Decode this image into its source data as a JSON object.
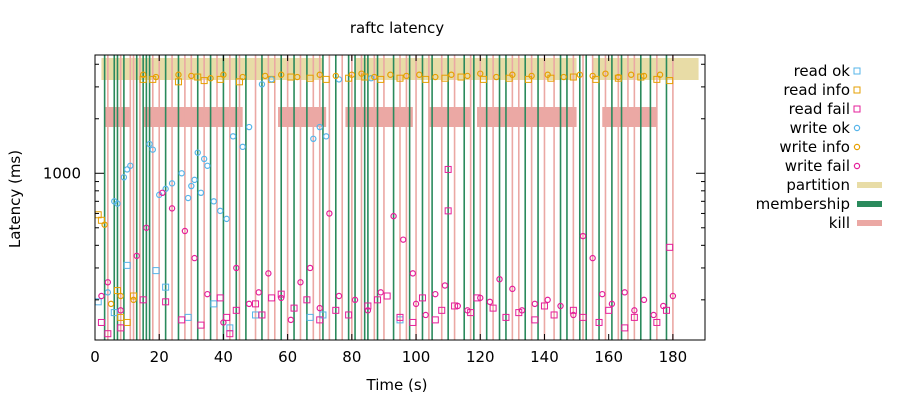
{
  "chart_data": {
    "type": "scatter",
    "title": "raftc latency",
    "xlabel": "Time (s)",
    "ylabel": "Latency (ms)",
    "xlim": [
      0,
      190
    ],
    "ylim_log": [
      120,
      4500
    ],
    "y_scale": "log",
    "xticks": [
      0,
      20,
      40,
      60,
      80,
      100,
      120,
      140,
      160,
      180
    ],
    "yticks_labeled": [
      1000
    ],
    "legend_position": "right",
    "grid": false,
    "colors": {
      "read ok": "#56b4e9",
      "read info": "#e69f00",
      "read fail": "#e51e9a",
      "write ok": "#56b4e9",
      "write info": "#e69f00",
      "write fail": "#e51e9a",
      "partition": "#e8dca6",
      "membership": "#2a8a5c",
      "kill": "#eba8a4"
    },
    "legend": [
      {
        "label": "read ok",
        "kind": "square",
        "color": "#56b4e9"
      },
      {
        "label": "read info",
        "kind": "square",
        "color": "#e69f00"
      },
      {
        "label": "read fail",
        "kind": "square",
        "color": "#e51e9a"
      },
      {
        "label": "write ok",
        "kind": "circle",
        "color": "#56b4e9"
      },
      {
        "label": "write info",
        "kind": "circle",
        "color": "#e69f00"
      },
      {
        "label": "write fail",
        "kind": "circle",
        "color": "#e51e9a"
      },
      {
        "label": "partition",
        "kind": "band",
        "color": "#e8dca6"
      },
      {
        "label": "membership",
        "kind": "band",
        "color": "#2a8a5c"
      },
      {
        "label": "kill",
        "kind": "band",
        "color": "#eba8a4"
      }
    ],
    "partition_intervals": [
      [
        2,
        24
      ],
      [
        24,
        54
      ],
      [
        54,
        71
      ],
      [
        81,
        103
      ],
      [
        103,
        150
      ],
      [
        155,
        188
      ]
    ],
    "kill_intervals": [
      [
        3,
        11
      ],
      [
        15,
        46
      ],
      [
        57,
        72
      ],
      [
        78,
        99
      ],
      [
        104,
        117
      ],
      [
        119,
        150
      ],
      [
        158,
        175
      ]
    ],
    "membership_events": [
      3,
      6,
      7,
      9,
      13,
      15,
      16,
      17,
      22,
      26,
      32,
      36,
      40,
      44,
      47,
      52,
      58,
      62,
      66,
      71,
      75,
      79,
      81,
      84,
      85,
      88,
      93,
      98,
      102,
      105,
      110,
      115,
      118,
      122,
      126,
      128,
      134,
      138,
      145,
      147,
      151,
      153,
      157,
      161,
      164,
      170,
      173,
      178
    ],
    "kill_events": [
      4,
      8,
      11,
      12,
      14,
      18,
      20,
      24,
      28,
      30,
      34,
      38,
      42,
      45,
      50,
      54,
      56,
      60,
      64,
      68,
      70,
      73,
      77,
      80,
      83,
      87,
      90,
      95,
      97,
      100,
      104,
      108,
      112,
      117,
      120,
      124,
      130,
      132,
      136,
      140,
      143,
      149,
      152,
      155,
      159,
      163,
      166,
      168,
      175,
      180
    ],
    "series": [
      {
        "name": "read ok",
        "points": [
          [
            1,
            195
          ],
          [
            6,
            170
          ],
          [
            10,
            310
          ],
          [
            19,
            290
          ],
          [
            22,
            235
          ],
          [
            29,
            160
          ],
          [
            37,
            190
          ],
          [
            42,
            140
          ],
          [
            50,
            165
          ],
          [
            67,
            160
          ],
          [
            71,
            165
          ],
          [
            95,
            155
          ]
        ]
      },
      {
        "name": "read info",
        "points": [
          [
            1,
            590
          ],
          [
            2,
            550
          ],
          [
            7,
            225
          ],
          [
            8,
            160
          ],
          [
            10,
            150
          ],
          [
            12,
            210
          ],
          [
            15,
            3300
          ],
          [
            18,
            3300
          ],
          [
            26,
            3200
          ],
          [
            32,
            3400
          ],
          [
            34,
            3250
          ],
          [
            39,
            3300
          ],
          [
            45,
            3200
          ],
          [
            55,
            3300
          ],
          [
            61,
            3400
          ],
          [
            67,
            3350
          ],
          [
            72,
            3300
          ],
          [
            79,
            3350
          ],
          [
            84,
            3400
          ],
          [
            89,
            3300
          ],
          [
            95,
            3350
          ],
          [
            103,
            3300
          ],
          [
            109,
            3350
          ],
          [
            114,
            3400
          ],
          [
            121,
            3300
          ],
          [
            129,
            3350
          ],
          [
            135,
            3300
          ],
          [
            142,
            3350
          ],
          [
            149,
            3400
          ],
          [
            156,
            3300
          ],
          [
            163,
            3350
          ],
          [
            170,
            3400
          ],
          [
            175,
            3300
          ],
          [
            179,
            3250
          ]
        ]
      },
      {
        "name": "read fail",
        "points": [
          [
            2,
            150
          ],
          [
            4,
            130
          ],
          [
            8,
            140
          ],
          [
            15,
            200
          ],
          [
            22,
            195
          ],
          [
            27,
            155
          ],
          [
            33,
            145
          ],
          [
            39,
            205
          ],
          [
            41,
            160
          ],
          [
            42,
            130
          ],
          [
            44,
            175
          ],
          [
            50,
            190
          ],
          [
            52,
            165
          ],
          [
            55,
            205
          ],
          [
            58,
            215
          ],
          [
            62,
            180
          ],
          [
            66,
            200
          ],
          [
            70,
            155
          ],
          [
            75,
            175
          ],
          [
            79,
            165
          ],
          [
            85,
            185
          ],
          [
            88,
            200
          ],
          [
            91,
            210
          ],
          [
            95,
            160
          ],
          [
            99,
            150
          ],
          [
            102,
            205
          ],
          [
            106,
            155
          ],
          [
            108,
            175
          ],
          [
            110,
            620
          ],
          [
            110,
            1050
          ],
          [
            112,
            185
          ],
          [
            117,
            170
          ],
          [
            119,
            205
          ],
          [
            124,
            180
          ],
          [
            128,
            160
          ],
          [
            132,
            170
          ],
          [
            137,
            155
          ],
          [
            140,
            185
          ],
          [
            143,
            165
          ],
          [
            149,
            175
          ],
          [
            152,
            160
          ],
          [
            157,
            150
          ],
          [
            160,
            175
          ],
          [
            165,
            140
          ],
          [
            168,
            160
          ],
          [
            175,
            150
          ],
          [
            178,
            175
          ],
          [
            179,
            390
          ]
        ]
      },
      {
        "name": "write ok",
        "points": [
          [
            4,
            220
          ],
          [
            6,
            700
          ],
          [
            7,
            680
          ],
          [
            9,
            950
          ],
          [
            10,
            1050
          ],
          [
            11,
            1100
          ],
          [
            17,
            1450
          ],
          [
            18,
            1350
          ],
          [
            20,
            760
          ],
          [
            22,
            820
          ],
          [
            24,
            880
          ],
          [
            27,
            1000
          ],
          [
            29,
            730
          ],
          [
            30,
            850
          ],
          [
            31,
            920
          ],
          [
            32,
            1300
          ],
          [
            33,
            780
          ],
          [
            34,
            1200
          ],
          [
            35,
            1100
          ],
          [
            37,
            700
          ],
          [
            39,
            620
          ],
          [
            41,
            560
          ],
          [
            43,
            1600
          ],
          [
            46,
            1400
          ],
          [
            48,
            1800
          ],
          [
            52,
            3100
          ],
          [
            55,
            3300
          ],
          [
            68,
            1550
          ],
          [
            70,
            1800
          ],
          [
            72,
            1600
          ],
          [
            76,
            3300
          ],
          [
            86,
            3350
          ]
        ]
      },
      {
        "name": "write info",
        "points": [
          [
            3,
            520
          ],
          [
            5,
            190
          ],
          [
            8,
            210
          ],
          [
            12,
            200
          ],
          [
            15,
            3500
          ],
          [
            19,
            3400
          ],
          [
            26,
            3500
          ],
          [
            30,
            3450
          ],
          [
            36,
            3350
          ],
          [
            40,
            3500
          ],
          [
            46,
            3400
          ],
          [
            53,
            3450
          ],
          [
            58,
            3500
          ],
          [
            63,
            3400
          ],
          [
            70,
            3500
          ],
          [
            75,
            3450
          ],
          [
            80,
            3500
          ],
          [
            83,
            3550
          ],
          [
            87,
            3400
          ],
          [
            92,
            3500
          ],
          [
            97,
            3450
          ],
          [
            101,
            3500
          ],
          [
            106,
            3400
          ],
          [
            111,
            3500
          ],
          [
            116,
            3450
          ],
          [
            120,
            3550
          ],
          [
            125,
            3400
          ],
          [
            130,
            3500
          ],
          [
            136,
            3450
          ],
          [
            141,
            3500
          ],
          [
            146,
            3400
          ],
          [
            151,
            3500
          ],
          [
            155,
            3450
          ],
          [
            159,
            3550
          ],
          [
            163,
            3400
          ],
          [
            167,
            3500
          ],
          [
            171,
            3450
          ],
          [
            176,
            3500
          ]
        ]
      },
      {
        "name": "write fail",
        "points": [
          [
            2,
            210
          ],
          [
            4,
            250
          ],
          [
            8,
            175
          ],
          [
            13,
            350
          ],
          [
            16,
            500
          ],
          [
            21,
            780
          ],
          [
            24,
            640
          ],
          [
            28,
            480
          ],
          [
            31,
            340
          ],
          [
            35,
            215
          ],
          [
            40,
            150
          ],
          [
            44,
            300
          ],
          [
            48,
            190
          ],
          [
            51,
            220
          ],
          [
            54,
            280
          ],
          [
            58,
            205
          ],
          [
            61,
            155
          ],
          [
            64,
            250
          ],
          [
            67,
            300
          ],
          [
            70,
            180
          ],
          [
            73,
            600
          ],
          [
            76,
            210
          ],
          [
            81,
            200
          ],
          [
            85,
            175
          ],
          [
            89,
            220
          ],
          [
            93,
            580
          ],
          [
            96,
            430
          ],
          [
            99,
            280
          ],
          [
            100,
            190
          ],
          [
            103,
            165
          ],
          [
            106,
            215
          ],
          [
            109,
            240
          ],
          [
            113,
            185
          ],
          [
            116,
            175
          ],
          [
            120,
            205
          ],
          [
            123,
            195
          ],
          [
            126,
            260
          ],
          [
            130,
            230
          ],
          [
            133,
            175
          ],
          [
            137,
            190
          ],
          [
            141,
            200
          ],
          [
            145,
            185
          ],
          [
            149,
            165
          ],
          [
            152,
            450
          ],
          [
            155,
            340
          ],
          [
            158,
            215
          ],
          [
            161,
            190
          ],
          [
            165,
            220
          ],
          [
            168,
            175
          ],
          [
            171,
            200
          ],
          [
            174,
            165
          ],
          [
            177,
            185
          ],
          [
            180,
            210
          ]
        ]
      }
    ]
  }
}
